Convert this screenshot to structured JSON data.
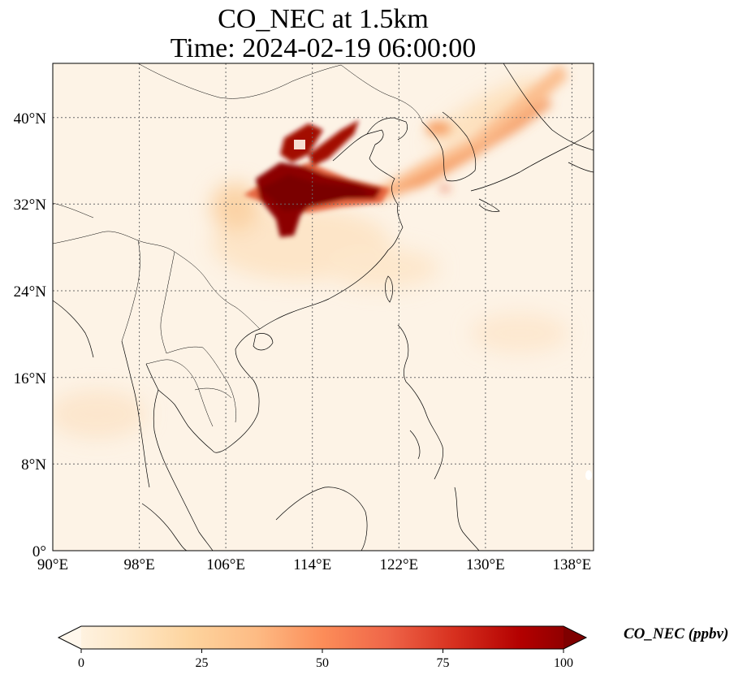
{
  "title": {
    "line1": "CO_NEC at 1.5km",
    "line2": "Time: 2024-02-19 06:00:00"
  },
  "map": {
    "lon_range": [
      90,
      140
    ],
    "lat_range": [
      0,
      45
    ],
    "lon_ticks": [
      "90°E",
      "98°E",
      "106°E",
      "114°E",
      "122°E",
      "130°E",
      "138°E"
    ],
    "lat_ticks": [
      "0°",
      "8°N",
      "16°N",
      "24°N",
      "32°N",
      "40°N"
    ],
    "gridlines": true,
    "field_colormap": "OrRd"
  },
  "colorbar": {
    "label": "CO_NEC (ppbv)",
    "ticks": [
      "0",
      "25",
      "50",
      "75",
      "100"
    ],
    "range": [
      0,
      100
    ],
    "extend": "both",
    "colors": [
      "#fff7ec",
      "#fee8c8",
      "#fdd49e",
      "#fdbb84",
      "#fc8d59",
      "#ef6548",
      "#d7301f",
      "#b30000",
      "#7f0000"
    ]
  }
}
